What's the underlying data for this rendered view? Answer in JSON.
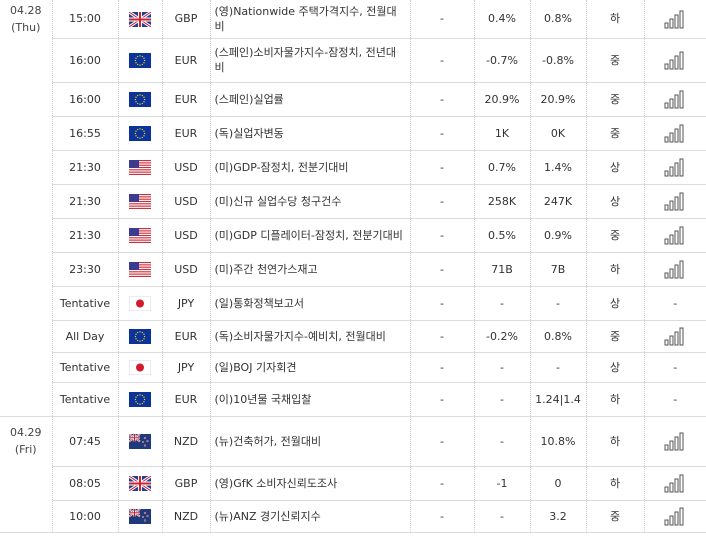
{
  "calendar": {
    "rows": [
      {
        "date": "04.28",
        "day": "(Thu)",
        "time": "15:00",
        "flag": "uk-flag-icon",
        "currency": "GBP",
        "event": "(영)Nationwide 주택가격지수, 전월대비",
        "actual": "-",
        "forecast": "0.4%",
        "previous": "0.8%",
        "importance": "하",
        "chart": "bar-chart-icon"
      },
      {
        "time": "16:00",
        "flag": "eu-flag-icon",
        "currency": "EUR",
        "event": "(스페인)소비자물가지수-잠정치, 전년대비",
        "actual": "-",
        "forecast": "-0.7%",
        "previous": "-0.8%",
        "importance": "중",
        "chart": "bar-chart-icon"
      },
      {
        "time": "16:00",
        "flag": "eu-flag-icon",
        "currency": "EUR",
        "event": "(스페인)실업률",
        "actual": "-",
        "forecast": "20.9%",
        "previous": "20.9%",
        "importance": "중",
        "chart": "bar-chart-icon"
      },
      {
        "time": "16:55",
        "flag": "eu-flag-icon",
        "currency": "EUR",
        "event": "(독)실업자변동",
        "actual": "-",
        "forecast": "1K",
        "previous": "0K",
        "importance": "중",
        "chart": "bar-chart-icon"
      },
      {
        "time": "21:30",
        "flag": "us-flag-icon",
        "currency": "USD",
        "event": "(미)GDP-잠정치, 전분기대비",
        "actual": "-",
        "forecast": "0.7%",
        "previous": "1.4%",
        "importance": "상",
        "chart": "bar-chart-icon"
      },
      {
        "time": "21:30",
        "flag": "us-flag-icon",
        "currency": "USD",
        "event": "(미)신규 실업수당 청구건수",
        "actual": "-",
        "forecast": "258K",
        "previous": "247K",
        "importance": "상",
        "chart": "bar-chart-icon"
      },
      {
        "time": "21:30",
        "flag": "us-flag-icon",
        "currency": "USD",
        "event": "(미)GDP 디플레이터-잠정치, 전분기대비",
        "actual": "-",
        "forecast": "0.5%",
        "previous": "0.9%",
        "importance": "중",
        "chart": "bar-chart-icon"
      },
      {
        "time": "23:30",
        "flag": "us-flag-icon",
        "currency": "USD",
        "event": "(미)주간 천연가스재고",
        "actual": "-",
        "forecast": "71B",
        "previous": "7B",
        "importance": "하",
        "chart": "bar-chart-icon"
      },
      {
        "time": "Tentative",
        "flag": "jp-flag-icon",
        "currency": "JPY",
        "event": "(일)통화정책보고서",
        "actual": "-",
        "forecast": "-",
        "previous": "-",
        "importance": "상",
        "chart_text": "-"
      },
      {
        "time": "All Day",
        "flag": "eu-flag-icon",
        "currency": "EUR",
        "event": "(독)소비자물가지수-예비치, 전월대비",
        "actual": "-",
        "forecast": "-0.2%",
        "previous": "0.8%",
        "importance": "중",
        "chart": "bar-chart-icon"
      },
      {
        "time": "Tentative",
        "flag": "jp-flag-icon",
        "currency": "JPY",
        "event": "(일)BOJ 기자회견",
        "actual": "-",
        "forecast": "-",
        "previous": "-",
        "importance": "상",
        "chart_text": "-"
      },
      {
        "time": "Tentative",
        "flag": "eu-flag-icon",
        "currency": "EUR",
        "event": "(이)10년물 국채입찰",
        "actual": "-",
        "forecast": "-",
        "previous": "1.24|1.4",
        "importance": "하",
        "chart_text": "-"
      },
      {
        "date": "04.29",
        "day": "(Fri)",
        "time": "07:45",
        "flag": "nz-flag-icon",
        "currency": "NZD",
        "event": "(뉴)건축허가, 전월대비",
        "actual": "-",
        "forecast": "-",
        "previous": "10.8%",
        "importance": "하",
        "chart": "bar-chart-icon"
      },
      {
        "time": "08:05",
        "flag": "uk-flag-icon",
        "currency": "GBP",
        "event": "(영)GfK 소비자신뢰도조사",
        "actual": "-",
        "forecast": "-1",
        "previous": "0",
        "importance": "하",
        "chart": "bar-chart-icon"
      },
      {
        "time": "10:00",
        "flag": "nz-flag-icon",
        "currency": "NZD",
        "event": "(뉴)ANZ 경기신뢰지수",
        "actual": "-",
        "forecast": "-",
        "previous": "3.2",
        "importance": "중",
        "chart": "bar-chart-icon"
      }
    ]
  }
}
